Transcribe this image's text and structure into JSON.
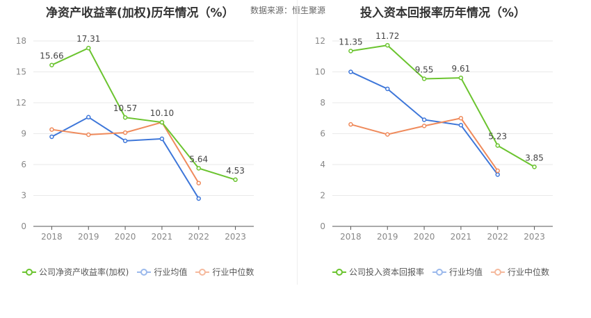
{
  "header": {
    "left_title": "净资产收益率(加权)历年情况（%）",
    "source": "数据来源：恒生聚源",
    "right_title": "投入资本回报率历年情况（%）"
  },
  "colors": {
    "company": "#6bc42f",
    "avg": "#3d76d9",
    "median": "#ef8a5b"
  },
  "chart_data": [
    {
      "type": "line",
      "title": "净资产收益率(加权)历年情况（%）",
      "x": [
        "2018",
        "2019",
        "2020",
        "2021",
        "2022",
        "2023"
      ],
      "ylim": [
        0,
        18
      ],
      "yticks": [
        "0",
        "3",
        "6",
        "9",
        "12",
        "15",
        "18"
      ],
      "grid": true,
      "legend": "bottom",
      "series": [
        {
          "name": "公司净资产收益率(加权)",
          "values": [
            15.66,
            17.31,
            10.57,
            10.1,
            5.64,
            4.53
          ],
          "labels": [
            "15.66",
            "17.31",
            "10.57",
            "10.10",
            "5.64",
            "4.53"
          ]
        },
        {
          "name": "行业均值",
          "values": [
            8.7,
            10.6,
            8.3,
            8.5,
            2.7,
            null
          ]
        },
        {
          "name": "行业中位数",
          "values": [
            9.4,
            8.9,
            9.1,
            10.1,
            4.2,
            null
          ]
        }
      ]
    },
    {
      "type": "line",
      "title": "投入资本回报率历年情况（%）",
      "x": [
        "2018",
        "2019",
        "2020",
        "2021",
        "2022",
        "2023"
      ],
      "ylim": [
        0,
        12
      ],
      "yticks": [
        "0",
        "2",
        "4",
        "6",
        "8",
        "10",
        "12"
      ],
      "grid": true,
      "legend": "bottom",
      "series": [
        {
          "name": "公司投入资本回报率",
          "values": [
            11.35,
            11.72,
            9.55,
            9.61,
            5.23,
            3.85
          ],
          "labels": [
            "11.35",
            "11.72",
            "9.55",
            "9.61",
            "5.23",
            "3.85"
          ]
        },
        {
          "name": "行业均值",
          "values": [
            10.0,
            8.9,
            6.9,
            6.55,
            3.35,
            null
          ]
        },
        {
          "name": "行业中位数",
          "values": [
            6.6,
            5.95,
            6.5,
            7.0,
            3.6,
            null
          ]
        }
      ]
    }
  ]
}
